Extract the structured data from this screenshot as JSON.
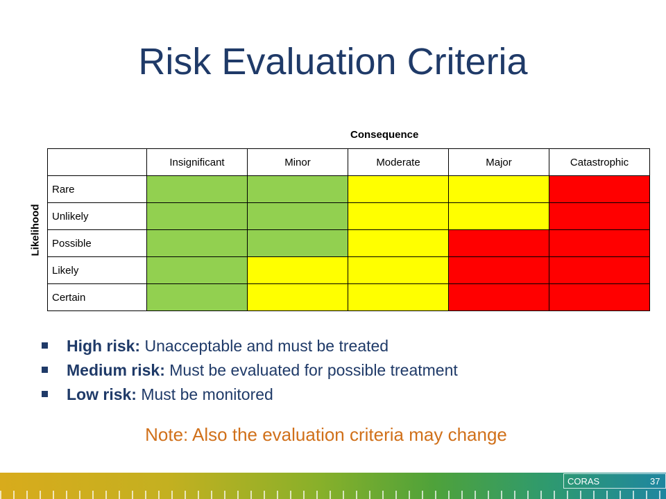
{
  "title": "Risk Evaluation Criteria",
  "matrix": {
    "column_axis_label": "Consequence",
    "row_axis_label": "Likelihood",
    "columns": [
      "Insignificant",
      "Minor",
      "Moderate",
      "Major",
      "Catastrophic"
    ],
    "rows": [
      {
        "label": "Rare",
        "cells": [
          "low",
          "low",
          "medium",
          "medium",
          "high"
        ]
      },
      {
        "label": "Unlikely",
        "cells": [
          "low",
          "low",
          "medium",
          "medium",
          "high"
        ]
      },
      {
        "label": "Possible",
        "cells": [
          "low",
          "low",
          "medium",
          "high",
          "high"
        ]
      },
      {
        "label": "Likely",
        "cells": [
          "low",
          "medium",
          "medium",
          "high",
          "high"
        ]
      },
      {
        "label": "Certain",
        "cells": [
          "low",
          "medium",
          "medium",
          "high",
          "high"
        ]
      }
    ],
    "colors": {
      "low": "#92d050",
      "medium": "#ffff00",
      "high": "#ff0000"
    }
  },
  "bullets": [
    {
      "term": "High risk:",
      "text": " Unacceptable and must be treated"
    },
    {
      "term": "Medium risk:",
      "text": " Must be evaluated for possible treatment"
    },
    {
      "term": "Low risk:",
      "text": " Must be monitored"
    }
  ],
  "note": "Note: Also the evaluation criteria may change",
  "footer": {
    "brand": "CORAS",
    "page_number": "37"
  }
}
